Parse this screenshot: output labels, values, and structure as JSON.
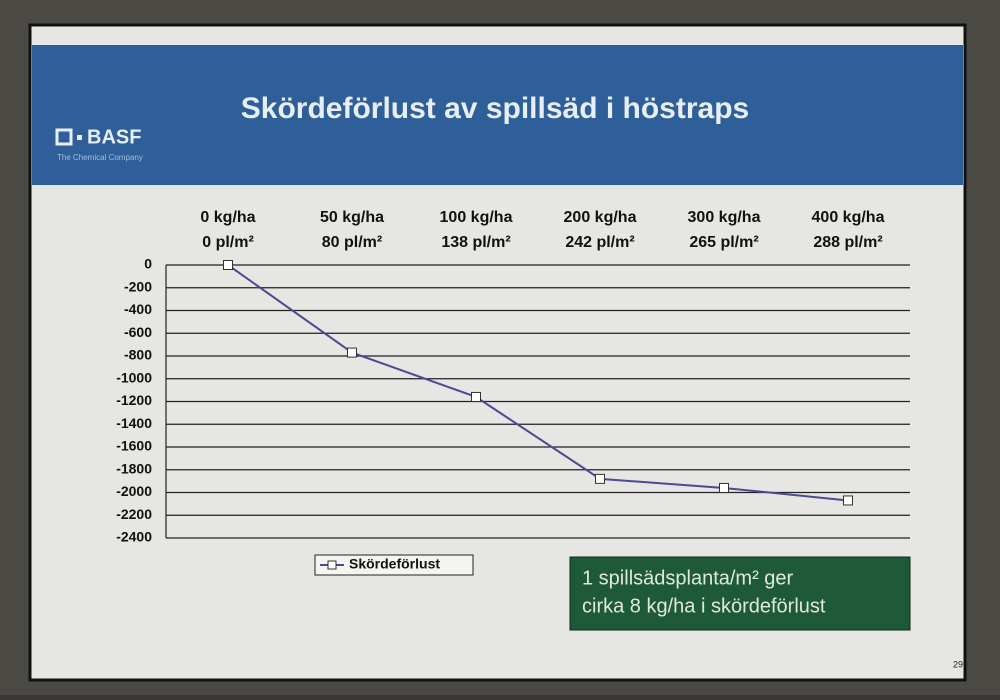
{
  "header": {
    "title": "Skördeförlust av spillsäd i höstraps",
    "logo": "BASF",
    "logo_tagline": "The Chemical Company"
  },
  "chart_data": {
    "type": "line",
    "categories": [
      "0 kg/ha",
      "50 kg/ha",
      "100 kg/ha",
      "200 kg/ha",
      "300 kg/ha",
      "400 kg/ha"
    ],
    "category_sublabels": [
      "0 pl/m²",
      "80 pl/m²",
      "138 pl/m²",
      "242 pl/m²",
      "265 pl/m²",
      "288 pl/m²"
    ],
    "series": [
      {
        "name": "Skördeförlust",
        "color": "#4a4a96",
        "values": [
          0,
          -770,
          -1160,
          -1880,
          -1960,
          -2070
        ]
      }
    ],
    "ylim": [
      -2400,
      0
    ],
    "yticks": [
      0,
      -200,
      -400,
      -600,
      -800,
      -1000,
      -1200,
      -1400,
      -1600,
      -1800,
      -2000,
      -2200,
      -2400
    ],
    "grid": true,
    "legend": "bottom-left"
  },
  "note": {
    "lines": [
      "1 spillsädsplanta/m² ger",
      "cirka 8 kg/ha i skördeförlust"
    ]
  },
  "page_number": "29"
}
